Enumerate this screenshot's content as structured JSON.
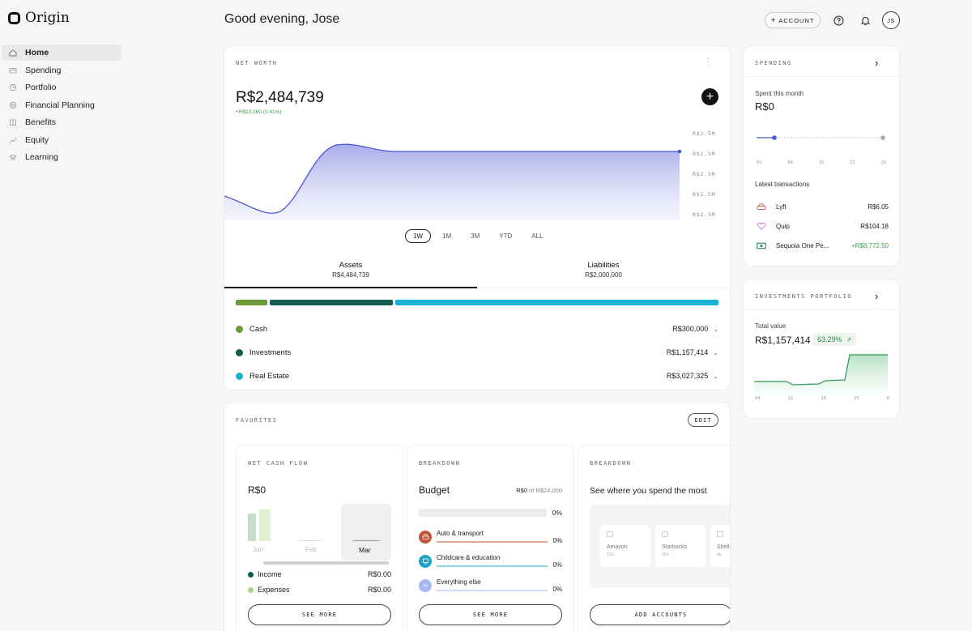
{
  "app": {
    "name": "Origin"
  },
  "sidebar": {
    "items": [
      {
        "label": "Home",
        "icon": "home-icon",
        "active": true
      },
      {
        "label": "Spending",
        "icon": "card-icon"
      },
      {
        "label": "Portfolio",
        "icon": "portfolio-icon"
      },
      {
        "label": "Financial Planning",
        "icon": "planning-icon"
      },
      {
        "label": "Benefits",
        "icon": "benefits-icon"
      },
      {
        "label": "Equity",
        "icon": "equity-icon"
      },
      {
        "label": "Learning",
        "icon": "learning-icon"
      }
    ]
  },
  "header": {
    "greeting": "Good evening, Jose",
    "account_button": "ACCOUNT",
    "avatar_initials": "JS"
  },
  "net_worth": {
    "label": "NET WORTH",
    "amount": "R$2,484,739",
    "delta": "+R$10,060 (0.41%)",
    "y_ticks": [
      "R$2.5M",
      "R$2.5M",
      "R$2.5M",
      "R$2.5M",
      "R$2.5M"
    ],
    "ranges": [
      "1W",
      "1M",
      "3M",
      "YTD",
      "ALL"
    ],
    "active_range": "1W",
    "tabs": [
      {
        "label": "Assets",
        "value": "R$4,484,739"
      },
      {
        "label": "Liabilities",
        "value": "R$2,000,000"
      }
    ],
    "assets": [
      {
        "name": "Cash",
        "value": "R$300,000",
        "color": "#6e9a3c"
      },
      {
        "name": "Investments",
        "value": "R$1,157,414",
        "color": "#135c52"
      },
      {
        "name": "Real Estate",
        "value": "R$3,027,325",
        "color": "#1ab1d6"
      }
    ]
  },
  "favorites": {
    "label": "FAVORITES",
    "edit_label": "EDIT",
    "cash_flow": {
      "label": "NET CASH FLOW",
      "amount": "R$0",
      "months": [
        "Jan",
        "Feb",
        "Mar"
      ],
      "legend": [
        {
          "name": "Income",
          "value": "R$0.00",
          "color": "#135c52"
        },
        {
          "name": "Expenses",
          "value": "R$0.00",
          "color": "#a8d48a"
        }
      ],
      "button": "SEE MORE"
    },
    "budget": {
      "label": "BREAKDOWN",
      "title": "Budget",
      "spent": "R$0",
      "of_text": "of R$24,000",
      "total_pct": "0%",
      "categories": [
        {
          "name": "Auto & transport",
          "pct": "0%",
          "color": "#c0553a"
        },
        {
          "name": "Childcare & education",
          "pct": "0%",
          "color": "#1aa3c9"
        },
        {
          "name": "Everything else",
          "pct": "0%",
          "color": "#a9b8f0"
        }
      ],
      "button": "SEE MORE"
    },
    "where_spend": {
      "label": "BREAKDOWN",
      "title": "See where you spend the most",
      "merchants": [
        {
          "name": "Amazon",
          "count": "12x"
        },
        {
          "name": "Starbucks",
          "count": "10x"
        },
        {
          "name": "Shell",
          "count": "8x"
        }
      ],
      "button": "ADD ACCOUNTS"
    }
  },
  "spending": {
    "label": "SPENDING",
    "spent_label": "Spent this month",
    "amount": "R$0",
    "x_ticks": [
      "01",
      "08",
      "15",
      "22",
      "29"
    ],
    "latest_label": "Latest transactions",
    "transactions": [
      {
        "name": "Lyft",
        "amount": "R$6.05",
        "icon": "car-icon",
        "positive": false
      },
      {
        "name": "Quip",
        "amount": "R$104.18",
        "icon": "heart-icon",
        "positive": false
      },
      {
        "name": "Sequoia One Pe...",
        "amount": "+R$8,772.50",
        "icon": "cash-icon",
        "positive": true
      }
    ]
  },
  "investments": {
    "label": "INVESTMENTS PORTFOLIO",
    "total_label": "Total value",
    "amount": "R$1,157,414",
    "change": "63.29%",
    "x_ticks": [
      "04",
      "11",
      "18",
      "25",
      "0"
    ]
  },
  "colors": {
    "accent": "#4a57d6",
    "positive": "#3a9a4f",
    "cash": "#6e9a3c",
    "investments": "#135c52",
    "real_estate": "#1ab1d6"
  }
}
